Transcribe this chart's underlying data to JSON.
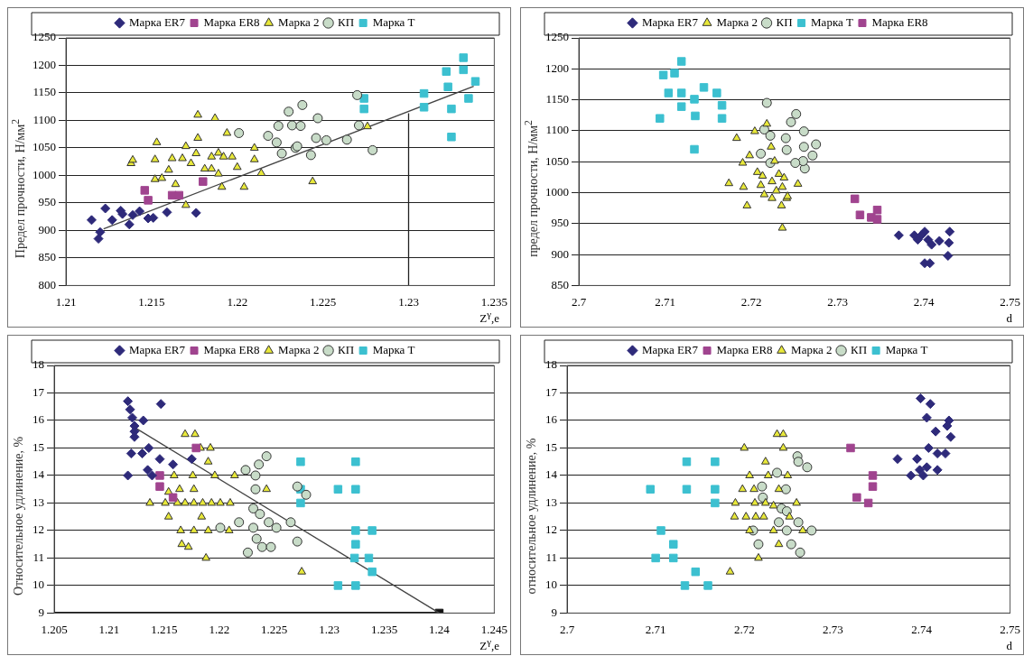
{
  "chart_data": [
    {
      "type": "scatter",
      "xlabel": "Z$^{γ}$,e",
      "ylabel": "Предел прочности, Н/мм$^{2}$",
      "xlim": [
        1.21,
        1.235
      ],
      "ylim": [
        800,
        1250
      ],
      "xticks": [
        1.21,
        1.215,
        1.22,
        1.225,
        1.23,
        1.235
      ],
      "yticks": [
        800,
        850,
        900,
        950,
        1000,
        1050,
        1100,
        1150,
        1200,
        1250
      ],
      "grid": "y",
      "legend": "top",
      "series": [
        {
          "name": "Марка ER7",
          "color": "#2e2a7a",
          "marker": "diamond",
          "x": [
            1.2115,
            1.2123,
            1.212,
            1.2119,
            1.2132,
            1.2137,
            1.2133,
            1.2143,
            1.2148,
            1.2151,
            1.2159,
            1.2176,
            1.2127,
            1.2139
          ],
          "values": [
            919,
            940,
            897,
            885,
            936,
            911,
            930,
            935,
            922,
            923,
            933,
            932,
            919,
            928
          ]
        },
        {
          "name": "Марка ER8",
          "color": "#a0448f",
          "marker": "square",
          "x": [
            1.2146,
            1.2148,
            1.2162,
            1.2166,
            1.218
          ],
          "values": [
            973,
            955,
            964,
            964,
            989
          ]
        },
        {
          "name": "Марка 2",
          "color": "#e8e83a",
          "marker": "triangle",
          "x": [
            1.2138,
            1.2139,
            1.2153,
            1.2152,
            1.2152,
            1.2156,
            1.2162,
            1.2164,
            1.216,
            1.2168,
            1.217,
            1.217,
            1.2173,
            1.2177,
            1.2177,
            1.2181,
            1.2185,
            1.2187,
            1.2189,
            1.2189,
            1.2191,
            1.2192,
            1.2194,
            1.2197,
            1.22,
            1.2204,
            1.221,
            1.221,
            1.2214,
            1.2244,
            1.2276,
            1.2185,
            1.2176
          ],
          "values": [
            1022,
            1028,
            1060,
            1029,
            993,
            995,
            1031,
            984,
            1010,
            1031,
            946,
            1053,
            1022,
            1068,
            1110,
            1012,
            1012,
            1104,
            1041,
            1003,
            979,
            1034,
            1077,
            1034,
            1015,
            979,
            1050,
            1029,
            1004,
            989,
            1089,
            1034,
            1040
          ]
        },
        {
          "name": "КП",
          "color": "#c8dcc8",
          "marker": "circle",
          "x": [
            1.2201,
            1.2218,
            1.2223,
            1.2224,
            1.2226,
            1.223,
            1.2232,
            1.2237,
            1.2238,
            1.2234,
            1.2235,
            1.2243,
            1.2247,
            1.2246,
            1.2252,
            1.2264,
            1.227,
            1.2271,
            1.2279
          ],
          "values": [
            1077,
            1072,
            1060,
            1090,
            1040,
            1116,
            1091,
            1090,
            1128,
            1050,
            1053,
            1037,
            1104,
            1068,
            1064,
            1065,
            1146,
            1091,
            1046
          ]
        },
        {
          "name": "Марка Т",
          "color": "#3cc0d0",
          "marker": "square",
          "x": [
            1.2274,
            1.2274,
            1.2309,
            1.2309,
            1.2322,
            1.2323,
            1.2325,
            1.2325,
            1.2332,
            1.2332,
            1.2335,
            1.2339
          ],
          "values": [
            1140,
            1121,
            1149,
            1124,
            1189,
            1161,
            1121,
            1070,
            1214,
            1192,
            1140,
            1171
          ]
        },
        {
          "type": "line",
          "color": "#444444",
          "marker": "none",
          "x": [
            1.2122,
            1.2338
          ],
          "values": [
            903,
            1162
          ]
        },
        {
          "type": "line",
          "color": "#222222",
          "marker": "none",
          "x": [
            1.23,
            1.23
          ],
          "values": [
            800,
            1113
          ]
        }
      ]
    },
    {
      "type": "scatter",
      "xlabel": "d",
      "ylabel": "предел прочности, Н/мм$^{2}$",
      "xlim": [
        2.7,
        2.75
      ],
      "ylim": [
        850,
        1250
      ],
      "xticks": [
        2.7,
        2.71,
        2.72,
        2.73,
        2.74,
        2.75
      ],
      "yticks": [
        850,
        900,
        950,
        1000,
        1050,
        1100,
        1150,
        1200,
        1250
      ],
      "grid": "y",
      "legend": "top",
      "series": [
        {
          "name": "Марка ER7",
          "color": "#2e2a7a",
          "marker": "diamond",
          "x": [
            2.7371,
            2.7389,
            2.7401,
            2.7405,
            2.7409,
            2.7418,
            2.743,
            2.7429,
            2.7428,
            2.7401,
            2.7407,
            2.7397,
            2.7393
          ],
          "values": [
            931,
            931,
            937,
            924,
            916,
            922,
            937,
            919,
            898,
            886,
            886,
            931,
            924
          ]
        },
        {
          "name": "Марка 2",
          "color": "#e8e83a",
          "marker": "triangle",
          "x": [
            2.7183,
            2.7174,
            2.719,
            2.7191,
            2.7195,
            2.7198,
            2.7204,
            2.7207,
            2.7211,
            2.7215,
            2.7218,
            2.7223,
            2.7224,
            2.7227,
            2.7229,
            2.7232,
            2.7235,
            2.7236,
            2.7238,
            2.7241,
            2.7242,
            2.7254,
            2.7236,
            2.7213,
            2.7224
          ],
          "values": [
            1088,
            1015,
            1048,
            1009,
            979,
            1060,
            1099,
            1033,
            1012,
            997,
            1111,
            1074,
            1018,
            1051,
            1003,
            1030,
            979,
            943,
            1024,
            991,
            994,
            1014,
            1009,
            1027,
            991
          ]
        },
        {
          "name": "КП",
          "color": "#c8dcc8",
          "marker": "circle",
          "x": [
            2.7218,
            2.7215,
            2.7222,
            2.7211,
            2.7222,
            2.724,
            2.7241,
            2.7246,
            2.7252,
            2.7261,
            2.7261,
            2.7275,
            2.7271,
            2.7262,
            2.726,
            2.7251
          ],
          "values": [
            1145,
            1102,
            1092,
            1063,
            1048,
            1088,
            1069,
            1114,
            1127,
            1099,
            1074,
            1078,
            1060,
            1039,
            1051,
            1048
          ]
        },
        {
          "name": "Марка Т",
          "color": "#3cc0d0",
          "marker": "square",
          "x": [
            2.7098,
            2.7119,
            2.7111,
            2.7104,
            2.7119,
            2.7119,
            2.7134,
            2.7135,
            2.7145,
            2.716,
            2.7166,
            2.7166,
            2.7094,
            2.7134
          ],
          "values": [
            1190,
            1212,
            1193,
            1161,
            1161,
            1139,
            1151,
            1124,
            1170,
            1161,
            1141,
            1120,
            1120,
            1070
          ]
        },
        {
          "name": "Марка ER8",
          "color": "#a0448f",
          "marker": "square",
          "x": [
            2.732,
            2.7326,
            2.7339,
            2.7346,
            2.7346
          ],
          "values": [
            990,
            964,
            960,
            957,
            972
          ]
        }
      ]
    },
    {
      "type": "scatter",
      "xlabel": "Z$^{γ}$,e",
      "ylabel": "Относительное удлинение, %",
      "xlim": [
        1.205,
        1.245
      ],
      "ylim": [
        9,
        18
      ],
      "xticks": [
        1.205,
        1.21,
        1.215,
        1.22,
        1.225,
        1.23,
        1.235,
        1.24,
        1.245
      ],
      "yticks": [
        9,
        10,
        11,
        12,
        13,
        14,
        15,
        16,
        17,
        18
      ],
      "grid": "y",
      "legend": "top",
      "series": [
        {
          "name": "Марка ER7",
          "color": "#2e2a7a",
          "marker": "diamond",
          "x": [
            1.2117,
            1.2119,
            1.2121,
            1.2123,
            1.2123,
            1.2123,
            1.2131,
            1.2147,
            1.2117,
            1.212,
            1.213,
            1.2136,
            1.2146,
            1.2135,
            1.2139,
            1.2158,
            1.2175
          ],
          "values": [
            16.7,
            16.4,
            16.1,
            15.8,
            15.4,
            15.6,
            16.0,
            16.6,
            14.0,
            14.8,
            14.8,
            15.0,
            14.6,
            14.2,
            14.0,
            14.4,
            14.6
          ]
        },
        {
          "name": "Марка ER8",
          "color": "#a0448f",
          "marker": "square",
          "x": [
            1.2146,
            1.2146,
            1.2179,
            1.2158
          ],
          "values": [
            14.0,
            13.6,
            15.0,
            13.2
          ]
        },
        {
          "name": "Марка 2",
          "color": "#e8e83a",
          "marker": "triangle",
          "x": [
            1.2137,
            1.2151,
            1.2154,
            1.2159,
            1.2154,
            1.2162,
            1.2164,
            1.2165,
            1.2166,
            1.2169,
            1.2169,
            1.2172,
            1.2176,
            1.2177,
            1.2177,
            1.2177,
            1.2178,
            1.2183,
            1.2185,
            1.2184,
            1.2188,
            1.219,
            1.2192,
            1.219,
            1.2193,
            1.2196,
            1.2201,
            1.221,
            1.2209,
            1.2214,
            1.2243,
            1.2275
          ],
          "values": [
            13.0,
            13.0,
            12.5,
            14.0,
            13.4,
            13.0,
            13.5,
            12.0,
            11.5,
            15.5,
            13.0,
            11.4,
            14.0,
            13.5,
            12.0,
            13.0,
            15.5,
            15.0,
            13.0,
            12.5,
            11.0,
            14.5,
            15.0,
            12.0,
            13.0,
            14.0,
            13.0,
            13.0,
            12.0,
            14.0,
            13.5,
            10.5
          ]
        },
        {
          "name": "КП",
          "color": "#c8dcc8",
          "marker": "circle",
          "x": [
            1.2201,
            1.2218,
            1.2224,
            1.2226,
            1.2231,
            1.2231,
            1.2233,
            1.2234,
            1.2233,
            1.2237,
            1.2236,
            1.2239,
            1.2243,
            1.2245,
            1.2247,
            1.2252,
            1.2265,
            1.2271,
            1.2279,
            1.2271
          ],
          "values": [
            12.1,
            12.3,
            14.2,
            11.2,
            12.8,
            12.1,
            13.5,
            11.7,
            14.0,
            12.6,
            14.4,
            11.4,
            14.7,
            12.3,
            11.4,
            12.1,
            12.3,
            11.6,
            13.3,
            13.6
          ]
        },
        {
          "name": "Марка Т",
          "color": "#3cc0d0",
          "marker": "square",
          "x": [
            1.2274,
            1.2274,
            1.2274,
            1.2308,
            1.2308,
            1.2324,
            1.2324,
            1.2324,
            1.2324,
            1.2323,
            1.2324,
            1.2339,
            1.2336,
            1.2339
          ],
          "values": [
            14.5,
            13.5,
            13.0,
            13.5,
            10.0,
            14.5,
            13.5,
            12.0,
            11.5,
            11.0,
            10.0,
            12.0,
            11.0,
            10.5
          ]
        },
        {
          "type": "line",
          "color": "#444444",
          "marker": "none",
          "x": [
            1.2125,
            1.24
          ],
          "values": [
            15.7,
            9
          ]
        },
        {
          "type": "line",
          "color": "#111111",
          "marker": "none",
          "x": [
            1.205,
            1.24
          ],
          "values": [
            9,
            9
          ]
        },
        {
          "type": "scatter",
          "color": "#111111",
          "marker": "square",
          "x": [
            1.24
          ],
          "values": [
            9
          ]
        }
      ]
    },
    {
      "type": "scatter",
      "xlabel": "d",
      "ylabel": "относительное удлинение, %",
      "xlim": [
        2.7,
        2.75
      ],
      "ylim": [
        9,
        18
      ],
      "xticks": [
        2.7,
        2.71,
        2.72,
        2.73,
        2.74,
        2.75
      ],
      "yticks": [
        9,
        10,
        11,
        12,
        13,
        14,
        15,
        16,
        17,
        18
      ],
      "grid": "y",
      "legend": "top",
      "series": [
        {
          "name": "Марка ER7",
          "color": "#2e2a7a",
          "marker": "diamond",
          "x": [
            2.7399,
            2.741,
            2.7406,
            2.7431,
            2.7429,
            2.7416,
            2.7433,
            2.7408,
            2.7418,
            2.7427,
            2.7373,
            2.7395,
            2.7388,
            2.7402,
            2.7406,
            2.7418,
            2.7398
          ],
          "values": [
            16.8,
            16.6,
            16.1,
            16.0,
            15.8,
            15.6,
            15.4,
            15.0,
            14.8,
            14.8,
            14.6,
            14.6,
            14.0,
            14.0,
            14.3,
            14.2,
            14.2
          ]
        },
        {
          "name": "Марка ER8",
          "color": "#a0448f",
          "marker": "square",
          "x": [
            2.732,
            2.7345,
            2.7345,
            2.7327,
            2.734
          ],
          "values": [
            15.0,
            14.0,
            13.6,
            13.2,
            13.0
          ]
        },
        {
          "name": "Марка 2",
          "color": "#e8e83a",
          "marker": "triangle",
          "x": [
            2.7237,
            2.7244,
            2.7244,
            2.72,
            2.7224,
            2.7206,
            2.7227,
            2.7249,
            2.7198,
            2.7211,
            2.7239,
            2.719,
            2.7212,
            2.7224,
            2.7259,
            2.7189,
            2.7202,
            2.7213,
            2.7222,
            2.7251,
            2.7206,
            2.7233,
            2.7266,
            2.7239,
            2.7216,
            2.7184,
            2.7233
          ],
          "values": [
            15.5,
            15.5,
            15.0,
            15.0,
            14.5,
            14.0,
            14.0,
            14.0,
            13.5,
            13.5,
            13.5,
            13.0,
            13.0,
            13.0,
            13.0,
            12.5,
            12.5,
            12.5,
            12.5,
            12.5,
            12.0,
            12.0,
            12.0,
            11.5,
            11.0,
            10.5,
            12.9
          ]
        },
        {
          "name": "КП",
          "color": "#c8dcc8",
          "marker": "circle",
          "x": [
            2.722,
            2.7237,
            2.7247,
            2.7242,
            2.7248,
            2.7239,
            2.7248,
            2.721,
            2.7216,
            2.7261,
            2.7253,
            2.7263,
            2.7276,
            2.726,
            2.7261,
            2.7271,
            2.7221
          ],
          "values": [
            13.6,
            14.1,
            13.5,
            12.8,
            12.7,
            12.3,
            12.0,
            12.0,
            11.5,
            12.3,
            11.5,
            11.2,
            12.0,
            14.7,
            14.5,
            14.3,
            13.2
          ]
        },
        {
          "name": "Марка Т",
          "color": "#3cc0d0",
          "marker": "square",
          "x": [
            2.7094,
            2.7135,
            2.7135,
            2.7167,
            2.7167,
            2.7167,
            2.7106,
            2.712,
            2.71,
            2.712,
            2.7145,
            2.7133,
            2.7159
          ],
          "values": [
            13.5,
            14.5,
            13.5,
            14.5,
            13.5,
            13.0,
            12.0,
            11.5,
            11.0,
            11.0,
            10.5,
            10.0,
            10.0
          ]
        }
      ]
    }
  ]
}
